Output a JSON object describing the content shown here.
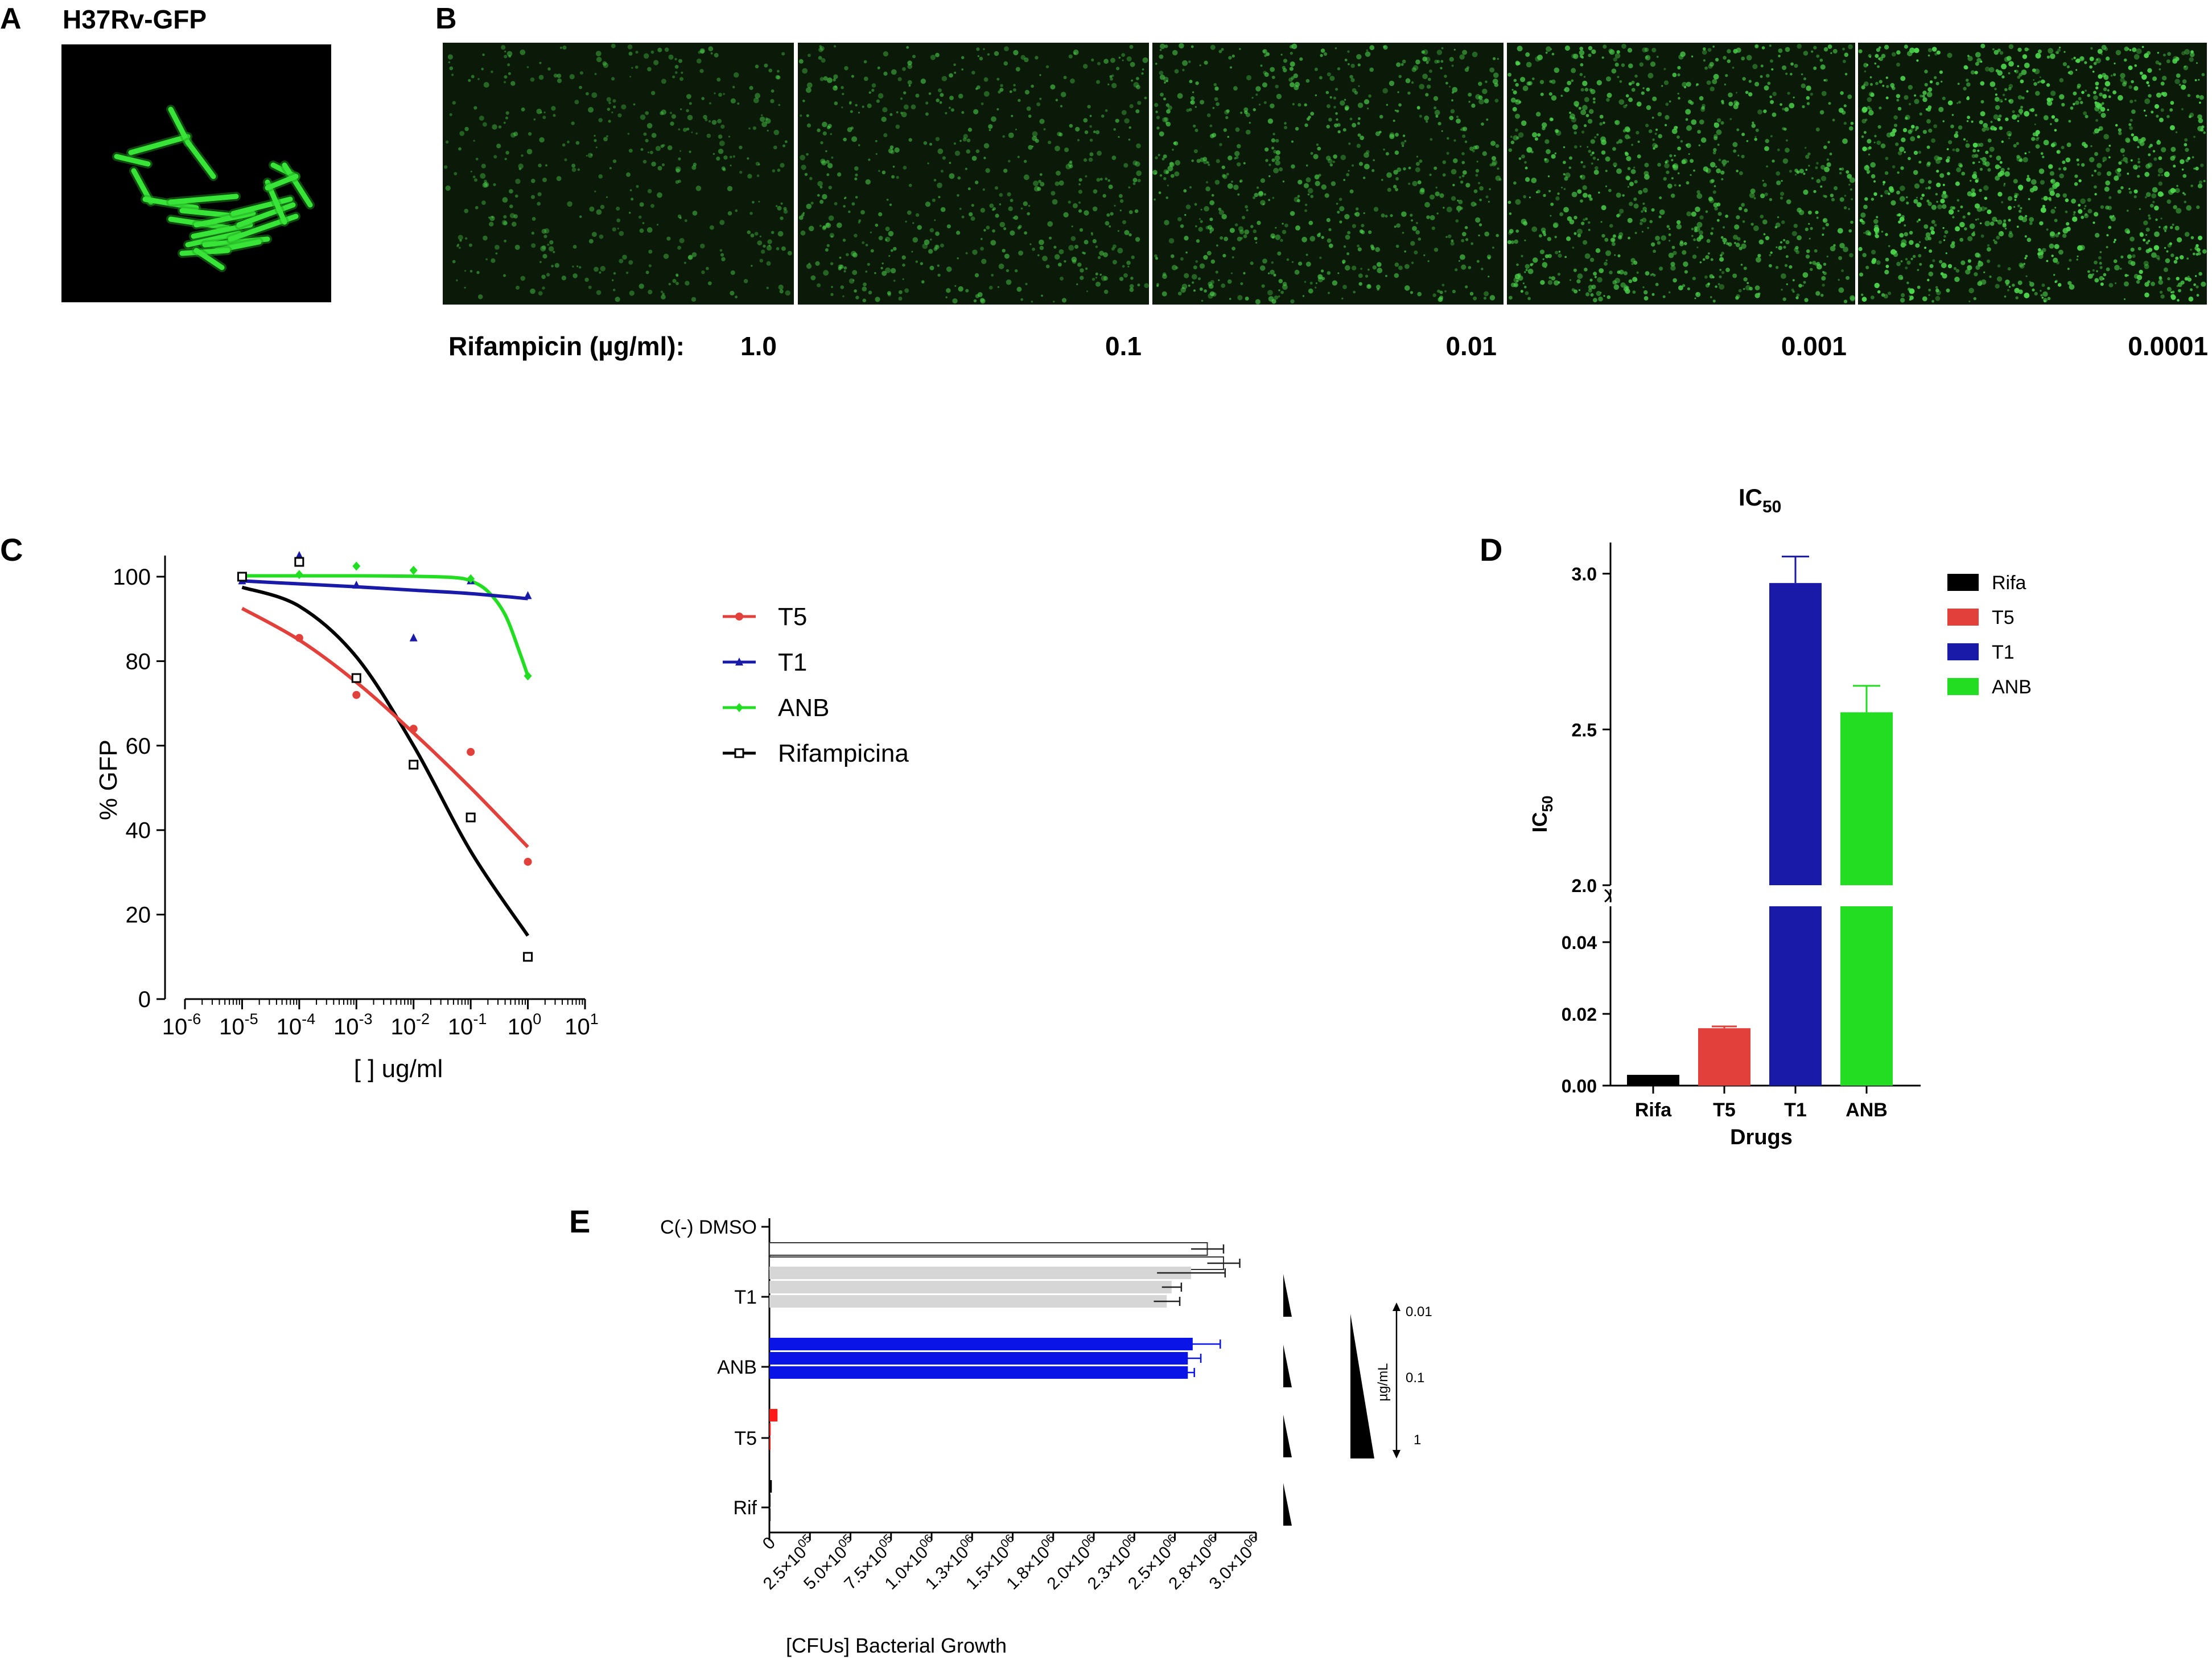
{
  "panels": {
    "A": {
      "label": "A",
      "title": "H37Rv-GFP"
    },
    "B": {
      "label": "B",
      "concentration_label": "Rifampicin (µg/ml):",
      "concentrations": [
        "1.0",
        "0.1",
        "0.01",
        "0.001",
        "0.0001"
      ],
      "field_density": [
        0.22,
        0.38,
        0.55,
        0.75,
        1.0
      ]
    },
    "C": {
      "label": "C"
    },
    "D": {
      "label": "D"
    },
    "E": {
      "label": "E"
    }
  },
  "colors": {
    "T5": "#e2403a",
    "T1": "#1a1aa8",
    "ANB": "#22dd22",
    "Rifampicina": "#000000",
    "gfp": "#4cd44c",
    "field_bg": "#0b1a08",
    "e_control": "#ffffff",
    "e_T1": "#d6d6d6",
    "e_ANB": "#0a14e6",
    "e_T5": "#ff1a1a",
    "e_Rif": "#000000"
  },
  "chart_data": [
    {
      "id": "C",
      "type": "scatter",
      "xscale": "log",
      "xlabel": "[ ] ug/ml",
      "ylabel": "% GFP",
      "xlim": [
        1e-06,
        10
      ],
      "ylim": [
        0,
        100
      ],
      "x_tick_exponents": [
        "-6",
        "-5",
        "-4",
        "-3",
        "-2",
        "-1",
        "0",
        "1"
      ],
      "y_ticks": [
        "0",
        "20",
        "40",
        "60",
        "80",
        "100"
      ],
      "legend_position": "right",
      "series": [
        {
          "name": "T5",
          "color_key": "T5",
          "marker": "circle",
          "points": [
            [
              1e-05,
              100
            ],
            [
              0.0001,
              85.5
            ],
            [
              0.001,
              72
            ],
            [
              0.01,
              64
            ],
            [
              0.1,
              58.5
            ],
            [
              1,
              32.5
            ]
          ],
          "fit": [
            [
              1e-05,
              92.5
            ],
            [
              0.0001,
              85
            ],
            [
              0.001,
              75
            ],
            [
              0.01,
              63
            ],
            [
              0.1,
              50
            ],
            [
              1,
              36
            ]
          ]
        },
        {
          "name": "T1",
          "color_key": "T1",
          "marker": "triangle",
          "points": [
            [
              1e-05,
              99
            ],
            [
              0.0001,
              105
            ],
            [
              0.001,
              98
            ],
            [
              0.01,
              85.5
            ],
            [
              0.1,
              99
            ],
            [
              1,
              95.5
            ]
          ],
          "fit": [
            [
              1e-05,
              99
            ],
            [
              0.0001,
              98.3
            ],
            [
              0.001,
              97.6
            ],
            [
              0.01,
              96.8
            ],
            [
              0.1,
              96
            ],
            [
              1,
              94.8
            ]
          ]
        },
        {
          "name": "ANB",
          "color_key": "ANB",
          "marker": "diamond",
          "points": [
            [
              1e-05,
              100
            ],
            [
              0.0001,
              100.5
            ],
            [
              0.001,
              102.5
            ],
            [
              0.01,
              101.5
            ],
            [
              0.1,
              99.5
            ],
            [
              1,
              76.5
            ]
          ],
          "fit": [
            [
              1e-05,
              100.2
            ],
            [
              0.0001,
              100.2
            ],
            [
              0.001,
              100.2
            ],
            [
              0.01,
              100.1
            ],
            [
              0.05,
              99.8
            ],
            [
              0.1,
              99
            ],
            [
              0.2,
              96.5
            ],
            [
              0.4,
              91
            ],
            [
              0.7,
              82.5
            ],
            [
              1,
              76.5
            ]
          ]
        },
        {
          "name": "Rifampicina",
          "color_key": "Rifampicina",
          "marker": "square",
          "points": [
            [
              1e-05,
              100
            ],
            [
              0.0001,
              103.5
            ],
            [
              0.001,
              76
            ],
            [
              0.01,
              55.5
            ],
            [
              0.1,
              43
            ],
            [
              1,
              10
            ]
          ],
          "fit": [
            [
              1e-05,
              97.5
            ],
            [
              0.0001,
              93
            ],
            [
              0.001,
              81
            ],
            [
              0.01,
              60
            ],
            [
              0.1,
              35
            ],
            [
              1,
              15
            ]
          ]
        }
      ]
    },
    {
      "id": "D",
      "type": "bar",
      "title_main": "IC",
      "title_sub": "50",
      "ylabel_main": "IC",
      "ylabel_sub": "50",
      "xlabel": "Drugs",
      "categories": [
        "Rifa",
        "T5",
        "T1",
        "ANB"
      ],
      "values": [
        0.003,
        0.016,
        2.97,
        2.555
      ],
      "errors": [
        0.0,
        0.0005,
        0.085,
        0.085
      ],
      "axis_break": {
        "lower": [
          0,
          0.05
        ],
        "upper": [
          2.0,
          3.1
        ]
      },
      "lower_ticks": [
        "0.00",
        "0.02",
        "0.04"
      ],
      "upper_ticks": [
        "2.0",
        "2.5",
        "3.0"
      ],
      "legend": [
        "Rifa",
        "T5",
        "T1",
        "ANB"
      ],
      "legend_position": "top-right"
    },
    {
      "id": "E",
      "type": "bar",
      "orientation": "horizontal",
      "xlabel": "[CFUs] Bacterial Growth",
      "xlim": [
        0,
        3000000
      ],
      "x_ticks": [
        "0",
        "2.5×10",
        "5.0×10",
        "7.5×10",
        "1.0×10",
        "1.3×10",
        "1.5×10",
        "1.8×10",
        "2.0×10",
        "2.3×10",
        "2.5×10",
        "2.8×10",
        "3.0×10"
      ],
      "x_tick_exponents": [
        "",
        "05",
        "05",
        "05",
        "06",
        "06",
        "06",
        "06",
        "06",
        "06",
        "06",
        "06",
        "06"
      ],
      "groups": [
        {
          "name": "C(-) DMSO",
          "color_key": "e_control",
          "values": [
            2700000,
            2800000
          ],
          "errors": [
            100000,
            100000
          ]
        },
        {
          "name": "T1",
          "color_key": "e_T1",
          "values": [
            2600000,
            2480000,
            2450000
          ],
          "errors": [
            210000,
            60000,
            80000
          ]
        },
        {
          "name": "ANB",
          "color_key": "e_ANB",
          "values": [
            2610000,
            2580000,
            2580000
          ],
          "errors": [
            170000,
            80000,
            40000
          ]
        },
        {
          "name": "T5",
          "color_key": "e_T5",
          "values": [
            50000,
            8000,
            3000
          ],
          "errors": [
            0,
            0,
            0
          ]
        },
        {
          "name": "Rif",
          "color_key": "e_Rif",
          "values": [
            15000,
            4000,
            2000
          ],
          "errors": [
            0,
            0,
            0
          ]
        }
      ],
      "dose_unit": "µg/mL",
      "dose_labels": [
        "0.01",
        "0.1",
        "1"
      ]
    }
  ]
}
